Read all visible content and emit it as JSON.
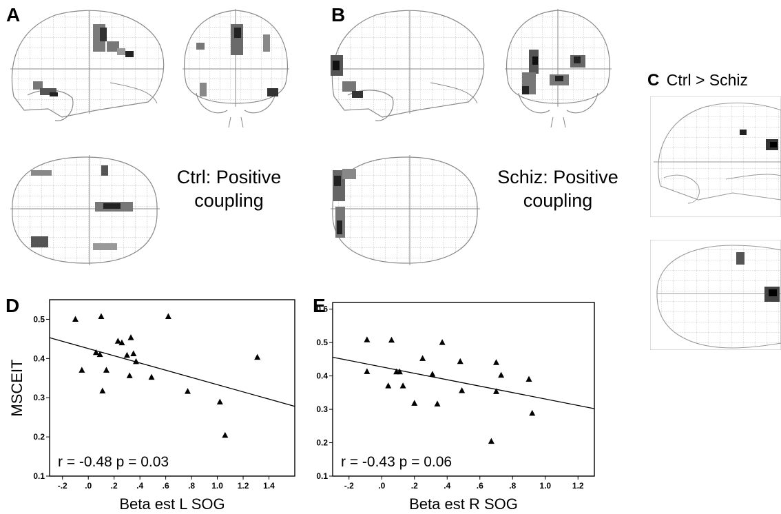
{
  "panels": {
    "A": {
      "letter": "A",
      "caption_line1": "Ctrl: Positive",
      "caption_line2": "coupling"
    },
    "B": {
      "letter": "B",
      "caption_line1": "Schiz: Positive",
      "caption_line2": "coupling"
    },
    "C": {
      "letter": "C",
      "title": "Ctrl > Schiz"
    },
    "D": {
      "letter": "D"
    },
    "E": {
      "letter": "E"
    }
  },
  "chart_data": [
    {
      "panel": "D",
      "type": "scatter",
      "title": "",
      "xlabel": "Beta est L SOG",
      "ylabel": "MSCEIT",
      "xlim": [
        -0.3,
        1.6
      ],
      "ylim": [
        0.1,
        0.55
      ],
      "xticks": [
        -0.2,
        0.0,
        0.2,
        0.4,
        0.6,
        0.8,
        1.0,
        1.2,
        1.4
      ],
      "xtick_labels": [
        "-.2",
        ".0",
        ".2",
        ".4",
        ".6",
        ".8",
        "1.0",
        "1.2",
        "1.4"
      ],
      "yticks": [
        0.1,
        0.2,
        0.3,
        0.4,
        0.5
      ],
      "ytick_labels": [
        "0.1",
        "0.2",
        "0.3",
        "0.4",
        "0.5"
      ],
      "annotation": "r = -0.48 p = 0.03",
      "marker": "triangle",
      "points": [
        [
          -0.1,
          0.5
        ],
        [
          -0.05,
          0.37
        ],
        [
          0.06,
          0.415
        ],
        [
          0.09,
          0.41
        ],
        [
          0.1,
          0.507
        ],
        [
          0.11,
          0.317
        ],
        [
          0.14,
          0.37
        ],
        [
          0.23,
          0.444
        ],
        [
          0.26,
          0.44
        ],
        [
          0.3,
          0.408
        ],
        [
          0.32,
          0.356
        ],
        [
          0.33,
          0.453
        ],
        [
          0.35,
          0.412
        ],
        [
          0.37,
          0.392
        ],
        [
          0.49,
          0.352
        ],
        [
          0.62,
          0.507
        ],
        [
          0.77,
          0.316
        ],
        [
          1.02,
          0.289
        ],
        [
          1.06,
          0.204
        ],
        [
          1.31,
          0.403
        ]
      ],
      "fit_line": [
        [
          -0.3,
          0.453
        ],
        [
          1.6,
          0.278
        ]
      ]
    },
    {
      "panel": "E",
      "type": "scatter",
      "title": "",
      "xlabel": "Beta est R SOG",
      "ylabel": "MSCEIT",
      "xlim": [
        -0.3,
        1.3
      ],
      "ylim": [
        0.1,
        0.62
      ],
      "xticks": [
        -0.2,
        0.0,
        0.2,
        0.4,
        0.6,
        0.8,
        1.0,
        1.2
      ],
      "xtick_labels": [
        "-.2",
        ".0",
        ".2",
        ".4",
        ".6",
        ".8",
        "1.0",
        "1.2"
      ],
      "yticks": [
        0.1,
        0.2,
        0.3,
        0.4,
        0.5,
        0.6
      ],
      "ytick_labels": [
        "0.1",
        "0.2",
        "0.3",
        "0.4",
        "0.5",
        "0.6"
      ],
      "annotation": "r = -0.43 p = 0.06",
      "marker": "triangle",
      "points": [
        [
          -0.09,
          0.508
        ],
        [
          -0.09,
          0.413
        ],
        [
          0.04,
          0.37
        ],
        [
          0.06,
          0.507
        ],
        [
          0.09,
          0.412
        ],
        [
          0.11,
          0.412
        ],
        [
          0.13,
          0.37
        ],
        [
          0.2,
          0.318
        ],
        [
          0.25,
          0.452
        ],
        [
          0.31,
          0.405
        ],
        [
          0.34,
          0.316
        ],
        [
          0.37,
          0.5
        ],
        [
          0.48,
          0.443
        ],
        [
          0.49,
          0.356
        ],
        [
          0.67,
          0.204
        ],
        [
          0.7,
          0.44
        ],
        [
          0.7,
          0.353
        ],
        [
          0.73,
          0.402
        ],
        [
          0.9,
          0.39
        ],
        [
          0.92,
          0.288
        ]
      ],
      "fit_line": [
        [
          -0.3,
          0.456
        ],
        [
          1.3,
          0.302
        ]
      ]
    }
  ]
}
